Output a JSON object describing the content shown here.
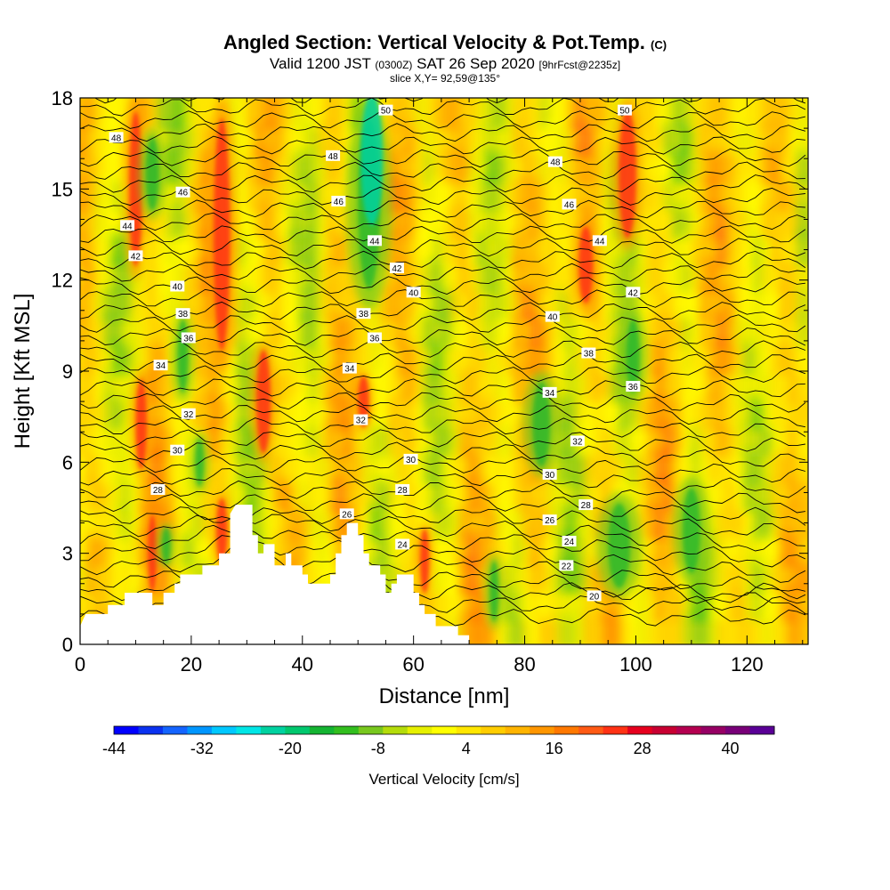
{
  "chart_data": {
    "type": "heatmap",
    "title": "Angled Section: Vertical Velocity & Pot.Temp.",
    "title_units": "(C)",
    "subtitle_valid": "Valid 1200 JST",
    "subtitle_z": "(0300Z)",
    "subtitle_date": "SAT 26 Sep 2020",
    "subtitle_fcst": "[9hrFcst@2235z]",
    "slice_label": "slice X,Y= 92,59@135°",
    "xlabel": "Distance [nm]",
    "ylabel": "Height [Kft MSL]",
    "xlim": [
      0,
      131
    ],
    "ylim": [
      0,
      18
    ],
    "x_ticks": [
      "0",
      "20",
      "40",
      "60",
      "80",
      "100",
      "120"
    ],
    "y_ticks": [
      "0",
      "3",
      "6",
      "9",
      "12",
      "15",
      "18"
    ],
    "colorbar": {
      "label": "Vertical Velocity [cm/s]",
      "tick_labels": [
        "-44",
        "-32",
        "-20",
        "-8",
        "4",
        "16",
        "28",
        "40"
      ],
      "tick_values": [
        -44,
        -32,
        -20,
        -8,
        4,
        16,
        28,
        40
      ],
      "range": [
        -44,
        46
      ],
      "colors": [
        "#0000ff",
        "#0a32f0",
        "#1464ff",
        "#0096ff",
        "#00c8ff",
        "#00e6e6",
        "#00d2a0",
        "#00c86e",
        "#14b432",
        "#32be1e",
        "#78c81e",
        "#b4dc0a",
        "#e6f000",
        "#ffff00",
        "#ffe600",
        "#ffcd00",
        "#ffb400",
        "#ff9600",
        "#ff7800",
        "#ff5a14",
        "#ff3214",
        "#e6001e",
        "#c80032",
        "#b40050",
        "#960064",
        "#780078",
        "#5a0096"
      ]
    },
    "theta_contour_labels": [
      "20",
      "22",
      "24",
      "26",
      "28",
      "30",
      "32",
      "34",
      "36",
      "38",
      "40",
      "42",
      "44",
      "46",
      "48",
      "50"
    ],
    "theta_label_positions": [
      {
        "x": 6.5,
        "y": 16.7,
        "v": "48"
      },
      {
        "x": 18.5,
        "y": 14.9,
        "v": "46"
      },
      {
        "x": 8.5,
        "y": 13.8,
        "v": "44"
      },
      {
        "x": 10,
        "y": 12.8,
        "v": "42"
      },
      {
        "x": 17.5,
        "y": 11.8,
        "v": "40"
      },
      {
        "x": 18.5,
        "y": 10.9,
        "v": "38"
      },
      {
        "x": 19.5,
        "y": 10.1,
        "v": "36"
      },
      {
        "x": 14.5,
        "y": 9.2,
        "v": "34"
      },
      {
        "x": 19.5,
        "y": 7.6,
        "v": "32"
      },
      {
        "x": 17.5,
        "y": 6.4,
        "v": "30"
      },
      {
        "x": 14,
        "y": 5.1,
        "v": "28"
      },
      {
        "x": 55,
        "y": 17.6,
        "v": "50"
      },
      {
        "x": 45.5,
        "y": 16.1,
        "v": "48"
      },
      {
        "x": 46.5,
        "y": 14.6,
        "v": "46"
      },
      {
        "x": 53,
        "y": 13.3,
        "v": "44"
      },
      {
        "x": 57,
        "y": 12.4,
        "v": "42"
      },
      {
        "x": 60,
        "y": 11.6,
        "v": "40"
      },
      {
        "x": 51,
        "y": 10.9,
        "v": "38"
      },
      {
        "x": 53,
        "y": 10.1,
        "v": "36"
      },
      {
        "x": 48.5,
        "y": 9.1,
        "v": "34"
      },
      {
        "x": 50.5,
        "y": 7.4,
        "v": "32"
      },
      {
        "x": 59.5,
        "y": 6.1,
        "v": "30"
      },
      {
        "x": 58,
        "y": 5.1,
        "v": "28"
      },
      {
        "x": 48,
        "y": 4.3,
        "v": "26"
      },
      {
        "x": 58,
        "y": 3.3,
        "v": "24"
      },
      {
        "x": 98,
        "y": 17.6,
        "v": "50"
      },
      {
        "x": 85.5,
        "y": 15.9,
        "v": "48"
      },
      {
        "x": 88,
        "y": 14.5,
        "v": "46"
      },
      {
        "x": 93.5,
        "y": 13.3,
        "v": "44"
      },
      {
        "x": 99.5,
        "y": 11.6,
        "v": "42"
      },
      {
        "x": 85,
        "y": 10.8,
        "v": "40"
      },
      {
        "x": 91.5,
        "y": 9.6,
        "v": "38"
      },
      {
        "x": 99.5,
        "y": 8.5,
        "v": "36"
      },
      {
        "x": 84.5,
        "y": 8.3,
        "v": "34"
      },
      {
        "x": 89.5,
        "y": 6.7,
        "v": "32"
      },
      {
        "x": 84.5,
        "y": 5.6,
        "v": "30"
      },
      {
        "x": 91,
        "y": 4.6,
        "v": "28"
      },
      {
        "x": 84.5,
        "y": 4.1,
        "v": "26"
      },
      {
        "x": 88,
        "y": 3.4,
        "v": "24"
      },
      {
        "x": 87.5,
        "y": 2.6,
        "v": "22"
      },
      {
        "x": 92.5,
        "y": 1.6,
        "v": "20"
      }
    ],
    "terrain_profile": [
      [
        0,
        0.6
      ],
      [
        1,
        1.0
      ],
      [
        5,
        1.0
      ],
      [
        5,
        1.3
      ],
      [
        8,
        1.3
      ],
      [
        8,
        1.7
      ],
      [
        13,
        1.7
      ],
      [
        13,
        1.3
      ],
      [
        15,
        1.3
      ],
      [
        15,
        1.7
      ],
      [
        17,
        1.7
      ],
      [
        17,
        2.0
      ],
      [
        18,
        2.0
      ],
      [
        18,
        2.3
      ],
      [
        22,
        2.3
      ],
      [
        22,
        2.6
      ],
      [
        25,
        2.6
      ],
      [
        25,
        3.0
      ],
      [
        27,
        3.0
      ],
      [
        27,
        4.3
      ],
      [
        28,
        4.6
      ],
      [
        31,
        4.6
      ],
      [
        31,
        3.6
      ],
      [
        32,
        3.6
      ],
      [
        32,
        3.0
      ],
      [
        33,
        3.0
      ],
      [
        33,
        3.3
      ],
      [
        35,
        3.3
      ],
      [
        35,
        2.6
      ],
      [
        37,
        2.6
      ],
      [
        37,
        3.0
      ],
      [
        38,
        3.0
      ],
      [
        38,
        2.6
      ],
      [
        40,
        2.6
      ],
      [
        40,
        2.3
      ],
      [
        41,
        2.3
      ],
      [
        41,
        2.0
      ],
      [
        45,
        2.0
      ],
      [
        45,
        2.3
      ],
      [
        46,
        2.3
      ],
      [
        46,
        3.0
      ],
      [
        47,
        3.0
      ],
      [
        47,
        3.6
      ],
      [
        48,
        3.6
      ],
      [
        48,
        4.0
      ],
      [
        50,
        4.0
      ],
      [
        50,
        3.6
      ],
      [
        51,
        3.6
      ],
      [
        51,
        3.0
      ],
      [
        52,
        3.0
      ],
      [
        52,
        2.6
      ],
      [
        54,
        2.6
      ],
      [
        54,
        2.3
      ],
      [
        55,
        2.3
      ],
      [
        55,
        1.7
      ],
      [
        56,
        1.7
      ],
      [
        56,
        2.0
      ],
      [
        57,
        2.0
      ],
      [
        57,
        2.3
      ],
      [
        60,
        2.3
      ],
      [
        60,
        1.7
      ],
      [
        61,
        1.7
      ],
      [
        61,
        1.3
      ],
      [
        62,
        1.3
      ],
      [
        62,
        1.0
      ],
      [
        64,
        1.0
      ],
      [
        64,
        0.6
      ],
      [
        68,
        0.6
      ],
      [
        68,
        0.3
      ],
      [
        70,
        0.3
      ],
      [
        70,
        0.0
      ]
    ],
    "updraft_cores": [
      {
        "x": 10,
        "y0": 12,
        "y1": 18,
        "w": 1.2
      },
      {
        "x": 11,
        "y0": 5.5,
        "y1": 9,
        "w": 1.0
      },
      {
        "x": 13,
        "y0": 1.5,
        "y1": 4.5,
        "w": 0.8
      },
      {
        "x": 25.5,
        "y0": 9,
        "y1": 18,
        "w": 1.5
      },
      {
        "x": 25.5,
        "y0": 2.5,
        "y1": 5,
        "w": 1.0
      },
      {
        "x": 33,
        "y0": 6,
        "y1": 10,
        "w": 1.3
      },
      {
        "x": 51,
        "y0": 7,
        "y1": 9,
        "w": 1.0
      },
      {
        "x": 62,
        "y0": 1.5,
        "y1": 4,
        "w": 0.8
      },
      {
        "x": 91,
        "y0": 11,
        "y1": 14,
        "w": 1.3
      },
      {
        "x": 98.5,
        "y0": 13,
        "y1": 18,
        "w": 1.6
      }
    ],
    "downdraft_cores": [
      {
        "x": 52,
        "y0": 11,
        "y1": 18,
        "w": 2.5
      },
      {
        "x": 13,
        "y0": 14,
        "y1": 17,
        "w": 1.5
      },
      {
        "x": 18.5,
        "y0": 8,
        "y1": 11,
        "w": 1.2
      },
      {
        "x": 21.5,
        "y0": 5,
        "y1": 7,
        "w": 1.0
      },
      {
        "x": 15.5,
        "y0": 2.5,
        "y1": 4,
        "w": 1.0
      },
      {
        "x": 99.5,
        "y0": 8,
        "y1": 11,
        "w": 1.5
      },
      {
        "x": 97,
        "y0": 1.5,
        "y1": 5,
        "w": 2.5
      },
      {
        "x": 110,
        "y0": 2,
        "y1": 5.5,
        "w": 2.0
      },
      {
        "x": 83,
        "y0": 5.5,
        "y1": 9,
        "w": 2.0
      },
      {
        "x": 74.5,
        "y0": 0.5,
        "y1": 3,
        "w": 1.0
      }
    ]
  }
}
